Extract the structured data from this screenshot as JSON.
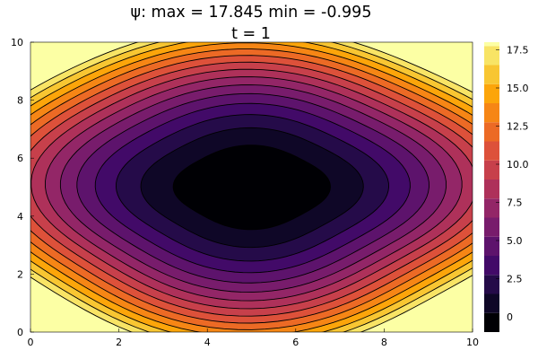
{
  "chart_data": {
    "type": "contour",
    "title": "ψ: max = 17.845 min = -0.995",
    "subtitle": "t = 1",
    "xlabel": "",
    "ylabel": "",
    "xlim": [
      0,
      10
    ],
    "ylim": [
      0,
      10
    ],
    "x_ticks": [
      "0",
      "2",
      "4",
      "6",
      "8",
      "10"
    ],
    "y_ticks": [
      "0",
      "2",
      "4",
      "6",
      "8",
      "10"
    ],
    "grid": false,
    "colormap": "inferno",
    "field_max": 17.845,
    "field_min": -0.995,
    "center": [
      5,
      5
    ],
    "levels": [
      -1.0,
      0.25,
      1.5,
      2.75,
      4.0,
      5.25,
      6.5,
      7.75,
      9.0,
      10.25,
      11.5,
      12.75,
      14.0,
      15.25,
      16.5,
      17.75
    ],
    "colorbar": {
      "range": [
        -1,
        18
      ],
      "ticks": [
        "0",
        "2.5",
        "5.0",
        "7.5",
        "10.0",
        "12.5",
        "15.0",
        "17.5"
      ],
      "tick_values": [
        0,
        2.5,
        5.0,
        7.5,
        10.0,
        12.5,
        15.0,
        17.5
      ]
    }
  }
}
